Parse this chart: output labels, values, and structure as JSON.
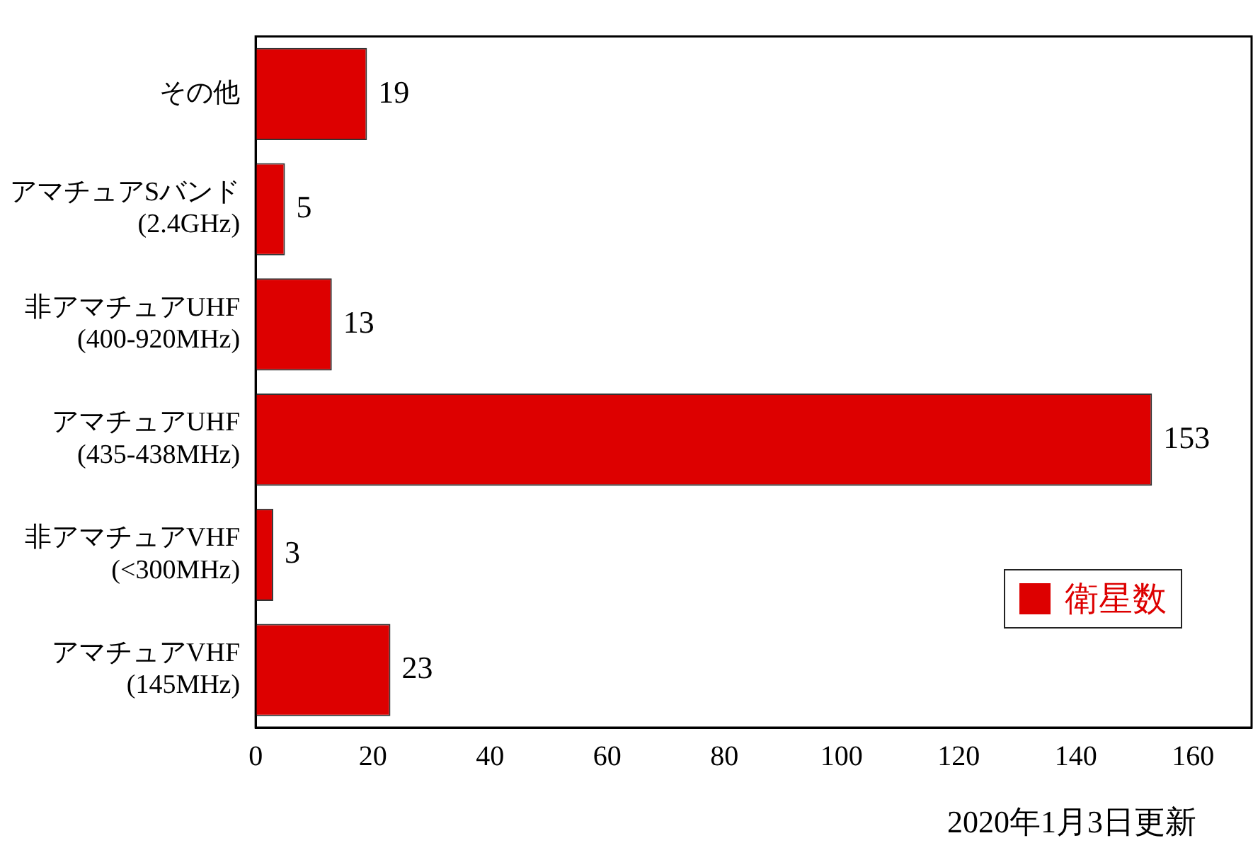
{
  "chart_data": {
    "type": "bar",
    "orientation": "horizontal",
    "categories": [
      "その他",
      "アマチュアSバンド\n(2.4GHz)",
      "非アマチュアUHF\n(400-920MHz)",
      "アマチュアUHF\n(435-438MHz)",
      "非アマチュアVHF\n(<300MHz)",
      "アマチュアVHF\n(145MHz)"
    ],
    "series": [
      {
        "name": "衛星数",
        "color": "#dd0000",
        "values": [
          19,
          5,
          13,
          153,
          3,
          23
        ]
      }
    ],
    "xlim": [
      0,
      170
    ],
    "xticks": [
      0,
      20,
      40,
      60,
      80,
      100,
      120,
      140,
      160
    ],
    "grid": false,
    "legend": "bottom right",
    "data_labels": true,
    "annotations": [
      "2020年1月3日更新"
    ]
  }
}
